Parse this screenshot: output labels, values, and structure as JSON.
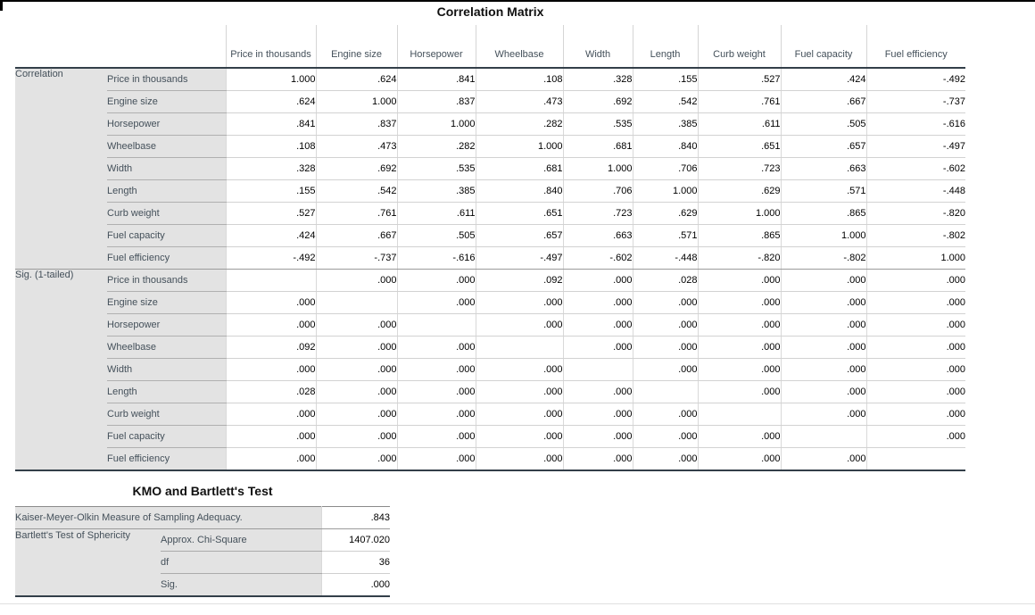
{
  "colors": {
    "label_bg": "#e3e3e3",
    "label_text": "#44505a",
    "value_text": "#000000",
    "dark_border": "#333f49",
    "section_line": "#9b9b9b",
    "grid_line": "#d2d2d2"
  },
  "correlation_matrix": {
    "title": "Correlation Matrix",
    "column_headers": [
      "Price in thousands",
      "Engine size",
      "Horsepower",
      "Wheelbase",
      "Width",
      "Length",
      "Curb weight",
      "Fuel capacity",
      "Fuel efficiency"
    ],
    "sections": [
      {
        "label": "Correlation",
        "rows": [
          {
            "label": "Price in thousands",
            "values": [
              "1.000",
              ".624",
              ".841",
              ".108",
              ".328",
              ".155",
              ".527",
              ".424",
              "-.492"
            ]
          },
          {
            "label": "Engine size",
            "values": [
              ".624",
              "1.000",
              ".837",
              ".473",
              ".692",
              ".542",
              ".761",
              ".667",
              "-.737"
            ]
          },
          {
            "label": "Horsepower",
            "values": [
              ".841",
              ".837",
              "1.000",
              ".282",
              ".535",
              ".385",
              ".611",
              ".505",
              "-.616"
            ]
          },
          {
            "label": "Wheelbase",
            "values": [
              ".108",
              ".473",
              ".282",
              "1.000",
              ".681",
              ".840",
              ".651",
              ".657",
              "-.497"
            ]
          },
          {
            "label": "Width",
            "values": [
              ".328",
              ".692",
              ".535",
              ".681",
              "1.000",
              ".706",
              ".723",
              ".663",
              "-.602"
            ]
          },
          {
            "label": "Length",
            "values": [
              ".155",
              ".542",
              ".385",
              ".840",
              ".706",
              "1.000",
              ".629",
              ".571",
              "-.448"
            ]
          },
          {
            "label": "Curb weight",
            "values": [
              ".527",
              ".761",
              ".611",
              ".651",
              ".723",
              ".629",
              "1.000",
              ".865",
              "-.820"
            ]
          },
          {
            "label": "Fuel capacity",
            "values": [
              ".424",
              ".667",
              ".505",
              ".657",
              ".663",
              ".571",
              ".865",
              "1.000",
              "-.802"
            ]
          },
          {
            "label": "Fuel efficiency",
            "values": [
              "-.492",
              "-.737",
              "-.616",
              "-.497",
              "-.602",
              "-.448",
              "-.820",
              "-.802",
              "1.000"
            ]
          }
        ]
      },
      {
        "label": "Sig. (1-tailed)",
        "rows": [
          {
            "label": "Price in thousands",
            "values": [
              "",
              ".000",
              ".000",
              ".092",
              ".000",
              ".028",
              ".000",
              ".000",
              ".000"
            ]
          },
          {
            "label": "Engine size",
            "values": [
              ".000",
              "",
              ".000",
              ".000",
              ".000",
              ".000",
              ".000",
              ".000",
              ".000"
            ]
          },
          {
            "label": "Horsepower",
            "values": [
              ".000",
              ".000",
              "",
              ".000",
              ".000",
              ".000",
              ".000",
              ".000",
              ".000"
            ]
          },
          {
            "label": "Wheelbase",
            "values": [
              ".092",
              ".000",
              ".000",
              "",
              ".000",
              ".000",
              ".000",
              ".000",
              ".000"
            ]
          },
          {
            "label": "Width",
            "values": [
              ".000",
              ".000",
              ".000",
              ".000",
              "",
              ".000",
              ".000",
              ".000",
              ".000"
            ]
          },
          {
            "label": "Length",
            "values": [
              ".028",
              ".000",
              ".000",
              ".000",
              ".000",
              "",
              ".000",
              ".000",
              ".000"
            ]
          },
          {
            "label": "Curb weight",
            "values": [
              ".000",
              ".000",
              ".000",
              ".000",
              ".000",
              ".000",
              "",
              ".000",
              ".000"
            ]
          },
          {
            "label": "Fuel capacity",
            "values": [
              ".000",
              ".000",
              ".000",
              ".000",
              ".000",
              ".000",
              ".000",
              "",
              ".000"
            ]
          },
          {
            "label": "Fuel efficiency",
            "values": [
              ".000",
              ".000",
              ".000",
              ".000",
              ".000",
              ".000",
              ".000",
              ".000",
              ""
            ]
          }
        ]
      }
    ]
  },
  "kmo_bartlett": {
    "title": "KMO and Bartlett's Test",
    "kmo_label": "Kaiser-Meyer-Olkin Measure of Sampling Adequacy.",
    "kmo_value": ".843",
    "bartlett_label": "Bartlett's Test of Sphericity",
    "rows": [
      {
        "label": "Approx. Chi-Square",
        "value": "1407.020"
      },
      {
        "label": "df",
        "value": "36"
      },
      {
        "label": "Sig.",
        "value": ".000"
      }
    ]
  }
}
